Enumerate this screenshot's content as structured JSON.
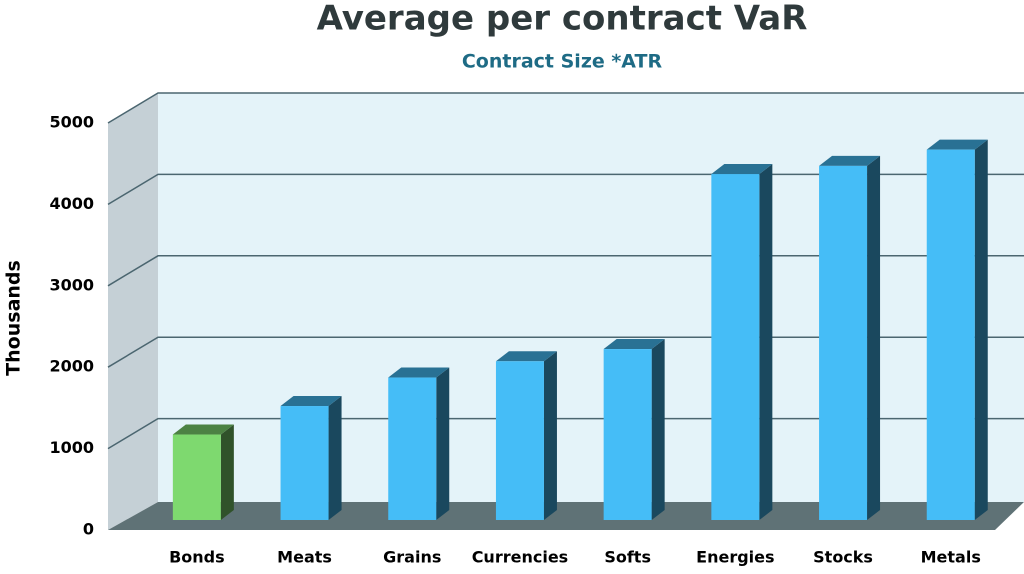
{
  "chart_data": {
    "type": "bar3d",
    "title": "Average per contract VaR",
    "subtitle": "Contract Size *ATR",
    "y_label": "Thousands",
    "categories": [
      "Bonds",
      "Meats",
      "Grains",
      "Currencies",
      "Softs",
      "Energies",
      "Stocks",
      "Metals"
    ],
    "values": [
      1050,
      1400,
      1750,
      1950,
      2100,
      4250,
      4350,
      4550
    ],
    "colors": [
      "#7ed96f",
      "#45bdf7",
      "#45bdf7",
      "#45bdf7",
      "#45bdf7",
      "#45bdf7",
      "#45bdf7",
      "#45bdf7"
    ],
    "ylim": [
      0,
      5000
    ],
    "yticks": [
      0,
      1000,
      2000,
      3000,
      4000,
      5000
    ],
    "grid": true
  }
}
